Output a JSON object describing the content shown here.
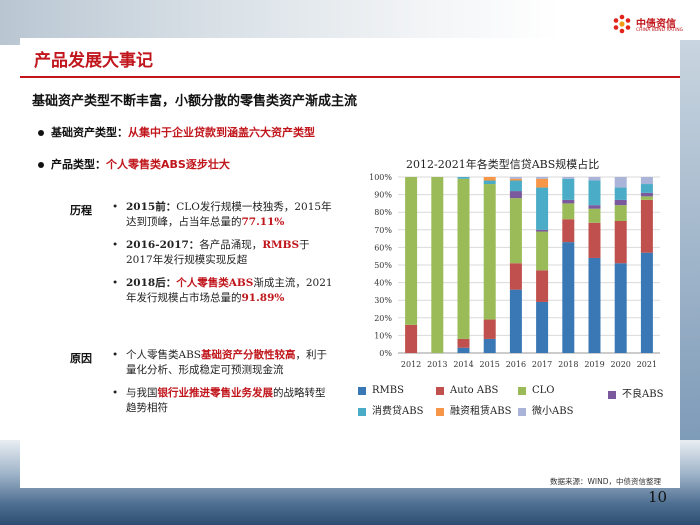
{
  "logo": {
    "name_cn": "中债资信",
    "name_en": "CHINA BOND RATING"
  },
  "slide": {
    "title": "产品发展大事记",
    "subheading": "基础资产类型不断丰富，小额分散的零售类资产渐成主流",
    "bullets": [
      {
        "label": "基础资产类型：",
        "text": "从集中于企业贷款到涵盖六大资产类型"
      },
      {
        "label": "产品类型：",
        "text": "个人零售类ABS逐步壮大"
      }
    ],
    "history": {
      "heading": "历程",
      "items": [
        {
          "period": "2015前：",
          "pre": "CLO发行规模一枝独秀，2015年达到顶峰，占当年总量的",
          "highlight": "77.11%",
          "post": ""
        },
        {
          "period": "2016-2017：",
          "pre": "各产品涌现，",
          "highlight": "RMBS",
          "post": "于2017年发行规模实现反超"
        },
        {
          "period": "2018后：",
          "pre": "",
          "highlight": "个人零售类ABS",
          "post": "渐成主流，2021年发行规模占市场总量的",
          "highlight2": "91.89%"
        }
      ]
    },
    "reasons": {
      "heading": "原因",
      "items": [
        {
          "pre": "个人零售类ABS",
          "highlight": "基础资产分散性较高",
          "post": "，利于量化分析、形成稳定可预测现金流"
        },
        {
          "pre": "与我国",
          "highlight": "银行业推进零售业务发展",
          "post": "的战略转型趋势相符"
        }
      ]
    },
    "source": "数据来源：WIND，中债资信整理",
    "page_number": "10"
  },
  "colors": {
    "accent": "#c0161c",
    "RMBS": "#3a78b5",
    "Auto ABS": "#c0504d",
    "CLO": "#9bbb59",
    "不良ABS": "#7a5a9c",
    "消费贷ABS": "#4aacc6",
    "融资租赁ABS": "#f79646",
    "微小ABS": "#a9b4d8"
  },
  "chart_data": {
    "type": "bar",
    "stacked": true,
    "title": "2012-2021年各类型信贷ABS规模占比",
    "categories": [
      "2012",
      "2013",
      "2014",
      "2015",
      "2016",
      "2017",
      "2018",
      "2019",
      "2020",
      "2021"
    ],
    "y_ticks": [
      "0%",
      "10%",
      "20%",
      "30%",
      "40%",
      "50%",
      "60%",
      "70%",
      "80%",
      "90%",
      "100%"
    ],
    "ylim": [
      0,
      100
    ],
    "legend_position": "bottom",
    "grid": true,
    "series": [
      {
        "name": "RMBS",
        "values": [
          0,
          0,
          3,
          8,
          36,
          29,
          63,
          54,
          51,
          57
        ]
      },
      {
        "name": "Auto ABS",
        "values": [
          16,
          0,
          5,
          11,
          15,
          18,
          13,
          20,
          24,
          30
        ]
      },
      {
        "name": "CLO",
        "values": [
          84,
          100,
          91,
          77,
          37,
          22,
          9,
          8,
          9,
          2
        ]
      },
      {
        "name": "不良ABS",
        "values": [
          0,
          0,
          0,
          0,
          4,
          1,
          2,
          2,
          3,
          2
        ]
      },
      {
        "name": "消费贷ABS",
        "values": [
          0,
          0,
          1,
          2,
          6,
          24,
          12,
          14,
          7,
          5
        ]
      },
      {
        "name": "融资租赁ABS",
        "values": [
          0,
          0,
          0,
          2,
          1,
          5,
          0,
          0,
          0,
          0
        ]
      },
      {
        "name": "微小ABS",
        "values": [
          0,
          0,
          0,
          0,
          1,
          1,
          1,
          2,
          6,
          4
        ]
      }
    ]
  }
}
